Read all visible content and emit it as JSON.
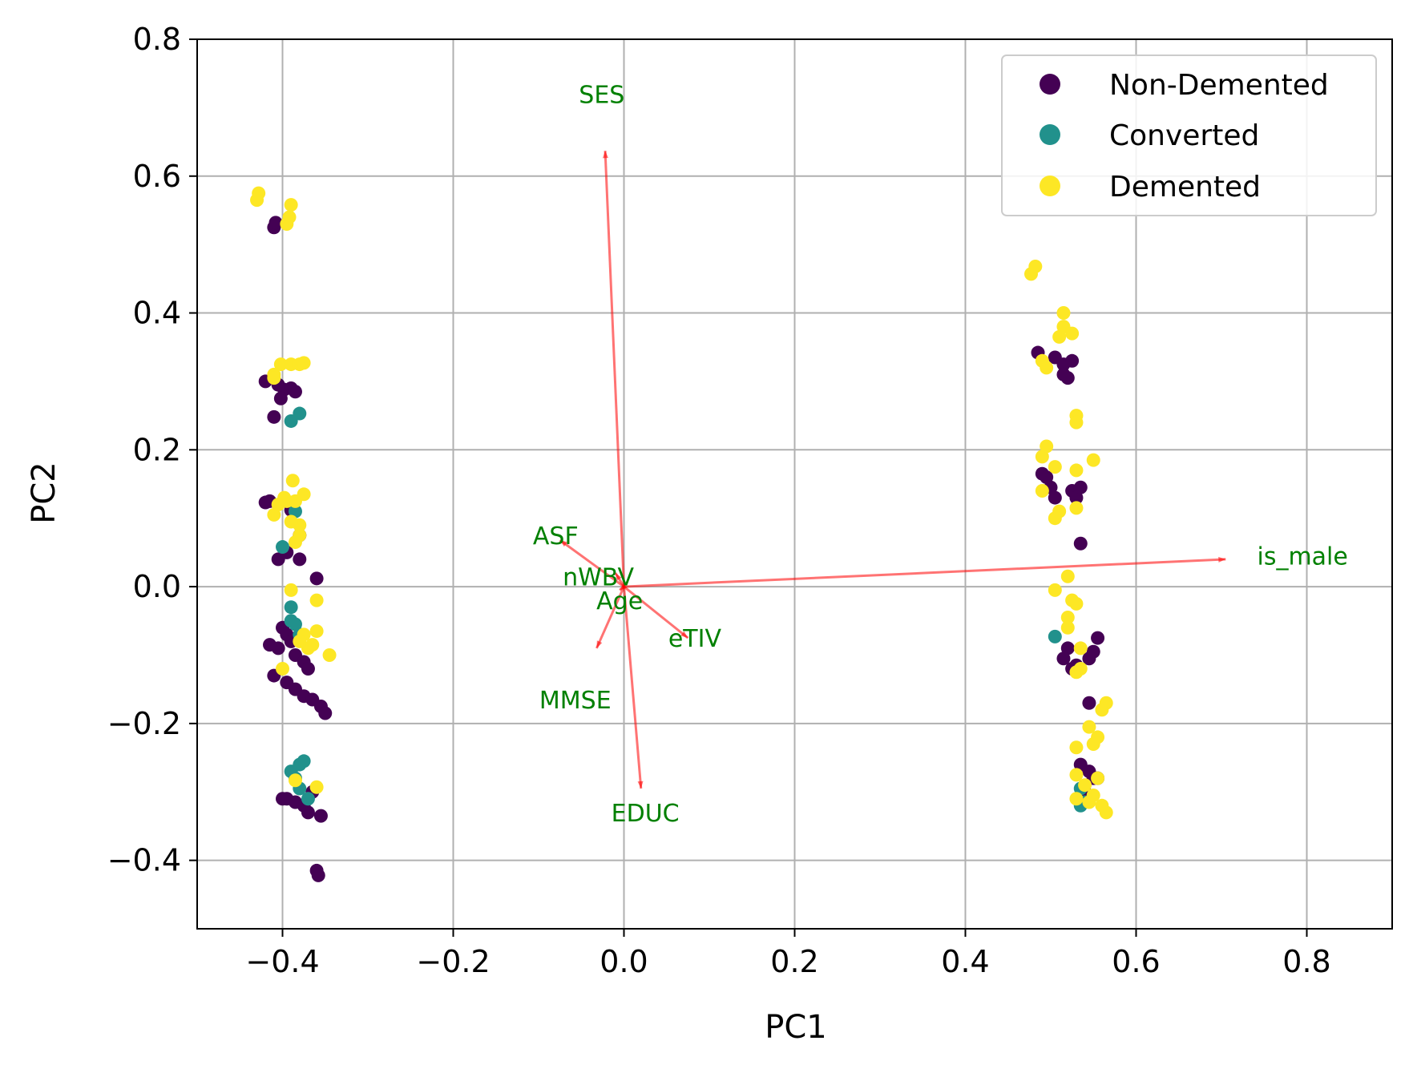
{
  "chart_data": {
    "type": "scatter",
    "title": "",
    "xlabel": "PC1",
    "ylabel": "PC2",
    "xlim": [
      -0.5,
      0.9
    ],
    "ylim": [
      -0.5,
      0.8
    ],
    "grid": true,
    "legend_position": "top-right",
    "x_ticks": [
      {
        "value": -0.4,
        "label": "−0.4"
      },
      {
        "value": -0.2,
        "label": "−0.2"
      },
      {
        "value": 0.0,
        "label": "0.0"
      },
      {
        "value": 0.2,
        "label": "0.2"
      },
      {
        "value": 0.4,
        "label": "0.4"
      },
      {
        "value": 0.6,
        "label": "0.6"
      },
      {
        "value": 0.8,
        "label": "0.8"
      }
    ],
    "y_ticks": [
      {
        "value": -0.4,
        "label": "−0.4"
      },
      {
        "value": -0.2,
        "label": "−0.2"
      },
      {
        "value": 0.0,
        "label": "0.0"
      },
      {
        "value": 0.2,
        "label": "0.2"
      },
      {
        "value": 0.4,
        "label": "0.4"
      },
      {
        "value": 0.6,
        "label": "0.6"
      },
      {
        "value": 0.8,
        "label": "0.8"
      }
    ],
    "series": [
      {
        "name": "Non-Demented",
        "color": "#440154",
        "points": [
          [
            -0.41,
            0.525
          ],
          [
            -0.408,
            0.532
          ],
          [
            -0.42,
            0.3
          ],
          [
            -0.405,
            0.295
          ],
          [
            -0.398,
            0.288
          ],
          [
            -0.39,
            0.29
          ],
          [
            -0.385,
            0.285
          ],
          [
            -0.402,
            0.275
          ],
          [
            -0.41,
            0.248
          ],
          [
            -0.415,
            0.125
          ],
          [
            -0.42,
            0.123
          ],
          [
            -0.39,
            0.112
          ],
          [
            -0.38,
            0.075
          ],
          [
            -0.405,
            0.04
          ],
          [
            -0.395,
            0.05
          ],
          [
            -0.38,
            0.04
          ],
          [
            -0.36,
            0.012
          ],
          [
            -0.4,
            -0.06
          ],
          [
            -0.395,
            -0.07
          ],
          [
            -0.39,
            -0.08
          ],
          [
            -0.405,
            -0.09
          ],
          [
            -0.385,
            -0.1
          ],
          [
            -0.375,
            -0.11
          ],
          [
            -0.37,
            -0.12
          ],
          [
            -0.41,
            -0.13
          ],
          [
            -0.395,
            -0.14
          ],
          [
            -0.385,
            -0.15
          ],
          [
            -0.375,
            -0.16
          ],
          [
            -0.365,
            -0.165
          ],
          [
            -0.355,
            -0.175
          ],
          [
            -0.35,
            -0.185
          ],
          [
            -0.415,
            -0.085
          ],
          [
            -0.395,
            -0.31
          ],
          [
            -0.385,
            -0.315
          ],
          [
            -0.375,
            -0.32
          ],
          [
            -0.37,
            -0.33
          ],
          [
            -0.365,
            -0.3
          ],
          [
            -0.355,
            -0.335
          ],
          [
            -0.4,
            -0.31
          ],
          [
            -0.36,
            -0.415
          ],
          [
            -0.358,
            -0.422
          ],
          [
            0.485,
            0.342
          ],
          [
            0.505,
            0.335
          ],
          [
            0.515,
            0.325
          ],
          [
            0.52,
            0.305
          ],
          [
            0.515,
            0.31
          ],
          [
            0.525,
            0.33
          ],
          [
            0.49,
            0.165
          ],
          [
            0.5,
            0.145
          ],
          [
            0.505,
            0.13
          ],
          [
            0.525,
            0.14
          ],
          [
            0.53,
            0.13
          ],
          [
            0.495,
            0.16
          ],
          [
            0.535,
            0.145
          ],
          [
            0.535,
            0.063
          ],
          [
            0.52,
            -0.09
          ],
          [
            0.515,
            -0.105
          ],
          [
            0.53,
            -0.115
          ],
          [
            0.545,
            -0.105
          ],
          [
            0.55,
            -0.095
          ],
          [
            0.555,
            -0.075
          ],
          [
            0.525,
            -0.12
          ],
          [
            0.545,
            -0.17
          ],
          [
            0.535,
            -0.26
          ],
          [
            0.545,
            -0.27
          ],
          [
            0.55,
            -0.28
          ],
          [
            0.54,
            -0.3
          ],
          [
            0.545,
            -0.31
          ],
          [
            0.555,
            -0.28
          ]
        ]
      },
      {
        "name": "Converted",
        "color": "#21918c",
        "points": [
          [
            -0.39,
            0.242
          ],
          [
            -0.38,
            0.253
          ],
          [
            -0.4,
            0.058
          ],
          [
            -0.385,
            0.11
          ],
          [
            -0.39,
            -0.03
          ],
          [
            -0.39,
            -0.05
          ],
          [
            -0.385,
            -0.055
          ],
          [
            -0.38,
            -0.07
          ],
          [
            -0.39,
            -0.27
          ],
          [
            -0.38,
            -0.26
          ],
          [
            -0.375,
            -0.255
          ],
          [
            -0.385,
            -0.28
          ],
          [
            -0.38,
            -0.295
          ],
          [
            -0.37,
            -0.31
          ],
          [
            0.505,
            -0.073
          ],
          [
            0.535,
            -0.295
          ],
          [
            0.535,
            -0.32
          ],
          [
            0.54,
            -0.315
          ]
        ]
      },
      {
        "name": "Demented",
        "color": "#fde725",
        "points": [
          [
            -0.43,
            0.565
          ],
          [
            -0.428,
            0.575
          ],
          [
            -0.395,
            0.53
          ],
          [
            -0.392,
            0.54
          ],
          [
            -0.39,
            0.558
          ],
          [
            -0.41,
            0.31
          ],
          [
            -0.402,
            0.325
          ],
          [
            -0.41,
            0.305
          ],
          [
            -0.39,
            0.325
          ],
          [
            -0.38,
            0.325
          ],
          [
            -0.375,
            0.327
          ],
          [
            -0.41,
            0.105
          ],
          [
            -0.405,
            0.12
          ],
          [
            -0.398,
            0.13
          ],
          [
            -0.395,
            0.125
          ],
          [
            -0.388,
            0.155
          ],
          [
            -0.385,
            0.125
          ],
          [
            -0.375,
            0.135
          ],
          [
            -0.38,
            0.09
          ],
          [
            -0.385,
            0.065
          ],
          [
            -0.38,
            0.075
          ],
          [
            -0.39,
            0.095
          ],
          [
            -0.39,
            -0.005
          ],
          [
            -0.36,
            -0.02
          ],
          [
            -0.375,
            -0.07
          ],
          [
            -0.37,
            -0.09
          ],
          [
            -0.36,
            -0.065
          ],
          [
            -0.38,
            -0.08
          ],
          [
            -0.365,
            -0.085
          ],
          [
            -0.345,
            -0.1
          ],
          [
            -0.4,
            -0.12
          ],
          [
            -0.385,
            -0.283
          ],
          [
            -0.36,
            -0.293
          ],
          [
            0.477,
            0.457
          ],
          [
            0.482,
            0.468
          ],
          [
            0.49,
            0.33
          ],
          [
            0.495,
            0.32
          ],
          [
            0.51,
            0.365
          ],
          [
            0.515,
            0.38
          ],
          [
            0.515,
            0.4
          ],
          [
            0.525,
            0.37
          ],
          [
            0.53,
            0.25
          ],
          [
            0.53,
            0.24
          ],
          [
            0.495,
            0.205
          ],
          [
            0.49,
            0.19
          ],
          [
            0.505,
            0.175
          ],
          [
            0.53,
            0.17
          ],
          [
            0.55,
            0.185
          ],
          [
            0.49,
            0.14
          ],
          [
            0.505,
            0.1
          ],
          [
            0.51,
            0.11
          ],
          [
            0.53,
            0.115
          ],
          [
            0.52,
            0.015
          ],
          [
            0.505,
            -0.005
          ],
          [
            0.525,
            -0.02
          ],
          [
            0.53,
            -0.025
          ],
          [
            0.52,
            -0.045
          ],
          [
            0.52,
            -0.06
          ],
          [
            0.535,
            -0.09
          ],
          [
            0.53,
            -0.125
          ],
          [
            0.535,
            -0.12
          ],
          [
            0.565,
            -0.17
          ],
          [
            0.56,
            -0.18
          ],
          [
            0.545,
            -0.205
          ],
          [
            0.555,
            -0.22
          ],
          [
            0.53,
            -0.235
          ],
          [
            0.55,
            -0.23
          ],
          [
            0.53,
            -0.275
          ],
          [
            0.54,
            -0.29
          ],
          [
            0.555,
            -0.28
          ],
          [
            0.53,
            -0.31
          ],
          [
            0.545,
            -0.315
          ],
          [
            0.55,
            -0.305
          ],
          [
            0.56,
            -0.32
          ],
          [
            0.565,
            -0.33
          ]
        ]
      }
    ],
    "loading_vectors": [
      {
        "name": "SES",
        "x": -0.022,
        "y": 0.637,
        "label_x": -0.026,
        "label_y": 0.72
      },
      {
        "name": "ASF",
        "x": -0.075,
        "y": 0.068,
        "label_x": -0.08,
        "label_y": 0.075
      },
      {
        "name": "nWBV",
        "x": -0.01,
        "y": 0.02,
        "label_x": -0.03,
        "label_y": 0.015
      },
      {
        "name": "Age",
        "x": -0.005,
        "y": -0.005,
        "label_x": -0.005,
        "label_y": -0.02
      },
      {
        "name": "eTIV",
        "x": 0.075,
        "y": -0.075,
        "label_x": 0.083,
        "label_y": -0.075
      },
      {
        "name": "MMSE",
        "x": -0.032,
        "y": -0.09,
        "label_x": -0.057,
        "label_y": -0.165
      },
      {
        "name": "EDUC",
        "x": 0.02,
        "y": -0.295,
        "label_x": 0.025,
        "label_y": -0.33
      },
      {
        "name": "is_male",
        "x": 0.705,
        "y": 0.04,
        "label_x": 0.795,
        "label_y": 0.045
      }
    ]
  }
}
